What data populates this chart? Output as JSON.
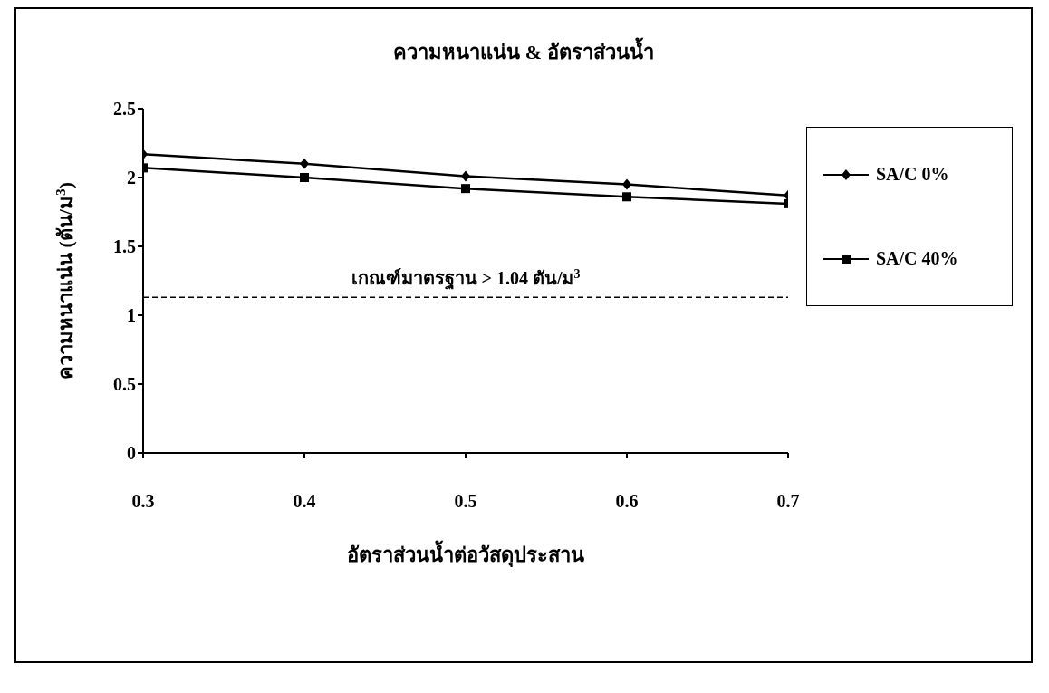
{
  "chart_data": {
    "type": "line",
    "title": "ความหนาแน่น & อัตราส่วนน้ำ",
    "xlabel": "อัตราส่วนน้ำต่อวัสดุประสาน",
    "ylabel": "ความหนาแน่น (ตัน/ม$^{3}$)",
    "x": [
      0.3,
      0.4,
      0.5,
      0.6,
      0.7
    ],
    "series": [
      {
        "name": "SA/C 0%",
        "color": "#000000",
        "marker": "diamond",
        "values": [
          2.17,
          2.1,
          2.01,
          1.95,
          1.87
        ]
      },
      {
        "name": "SA/C 40%",
        "color": "#000000",
        "marker": "square",
        "values": [
          2.07,
          2.0,
          1.92,
          1.86,
          1.81
        ]
      }
    ],
    "xlim": [
      0.3,
      0.7
    ],
    "xticks": [
      0.3,
      0.4,
      0.5,
      0.6,
      0.7
    ],
    "ylim": [
      0,
      2.5
    ],
    "yticks": [
      0,
      0.5,
      1,
      1.5,
      2,
      2.5
    ],
    "ref_lines": [
      {
        "axis": "y",
        "value": 1.13,
        "label": "เกณฑ์มาตรฐาน > 1.04 ตัน/ม$^{3}$",
        "line_style": "dashed",
        "color": "#000000"
      }
    ],
    "grid": false,
    "legend": "right",
    "line_style": "solid"
  }
}
